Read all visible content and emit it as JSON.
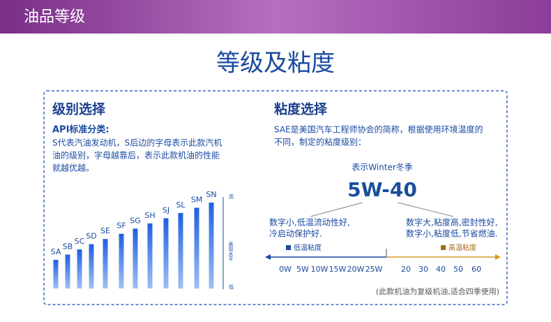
{
  "header": {
    "title": "油品等级"
  },
  "section_title": "等级及粘度",
  "left": {
    "title": "级别选择",
    "subtitle": "API标准分类:",
    "description": [
      "S代表汽油发动机，S后边的字母表示此款汽机",
      "油的级别，字母越靠后，表示此款机油的性能",
      "就越优越。"
    ],
    "grades": [
      "SA",
      "SB",
      "SC",
      "SD",
      "SE",
      "SF",
      "SG",
      "SH",
      "SJ",
      "SL",
      "SM",
      "SN"
    ],
    "axis_high": "高",
    "axis_label": "表现水平",
    "axis_low": "低"
  },
  "right": {
    "title": "粘度选择",
    "description": [
      "SAE是美国汽车工程师协会的简称，根据使用环境温度的",
      "不同，制定的粘度级别："
    ],
    "winter_note": "表示Winter冬季",
    "grade": "5W-40",
    "low_note": [
      "数字小,低温流动性好,",
      "冷启动保护好."
    ],
    "high_note": [
      "数字大,粘度高,密封性好,",
      "数字小,粘度低,节省燃油."
    ],
    "legend_low": "低温粘度",
    "legend_high": "高温粘度",
    "winter_ticks": [
      "0W",
      "5W",
      "10W",
      "15W",
      "20W",
      "25W"
    ],
    "summer_ticks": [
      "20",
      "30",
      "40",
      "50",
      "60"
    ],
    "footnote": "(此款机油为复级机油,适合四季使用)"
  }
}
